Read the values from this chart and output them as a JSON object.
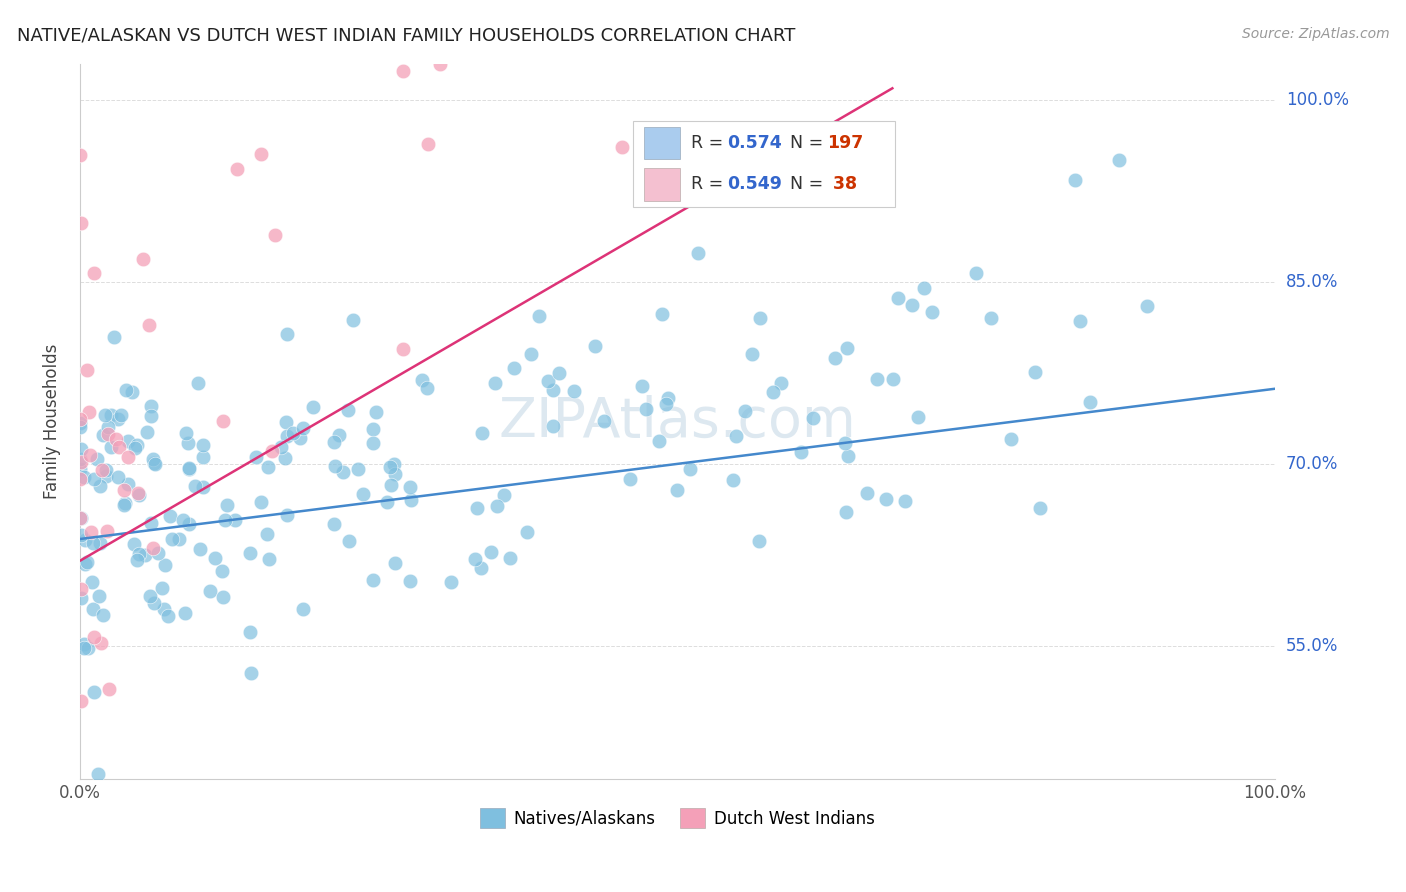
{
  "title": "NATIVE/ALASKAN VS DUTCH WEST INDIAN FAMILY HOUSEHOLDS CORRELATION CHART",
  "source": "Source: ZipAtlas.com",
  "ylabel": "Family Households",
  "ytick_labels": [
    "55.0%",
    "70.0%",
    "85.0%",
    "100.0%"
  ],
  "ytick_values": [
    0.55,
    0.7,
    0.85,
    1.0
  ],
  "xlim": [
    0.0,
    1.0
  ],
  "ylim": [
    0.44,
    1.03
  ],
  "color_blue": "#7fbfdf",
  "color_pink": "#f4a0b8",
  "line_color_blue": "#4488cc",
  "line_color_pink": "#dd3377",
  "title_color": "#222222",
  "source_color": "#999999",
  "watermark_color": "#dde8f0",
  "legend_box_color_blue": "#aaccee",
  "legend_box_color_pink": "#f4c0d0",
  "background_color": "#ffffff",
  "grid_color": "#dddddd",
  "legend_r_color": "#333333",
  "legend_n_color": "#3366cc",
  "legend_val_color": "#cc3300",
  "axis_label_color": "#3366cc",
  "N_blue": 197,
  "N_pink": 38,
  "R_blue": 0.574,
  "R_pink": 0.549,
  "blue_line_x": [
    0.0,
    1.0
  ],
  "blue_line_y": [
    0.638,
    0.762
  ],
  "pink_line_x": [
    0.0,
    0.68
  ],
  "pink_line_y": [
    0.62,
    1.01
  ]
}
